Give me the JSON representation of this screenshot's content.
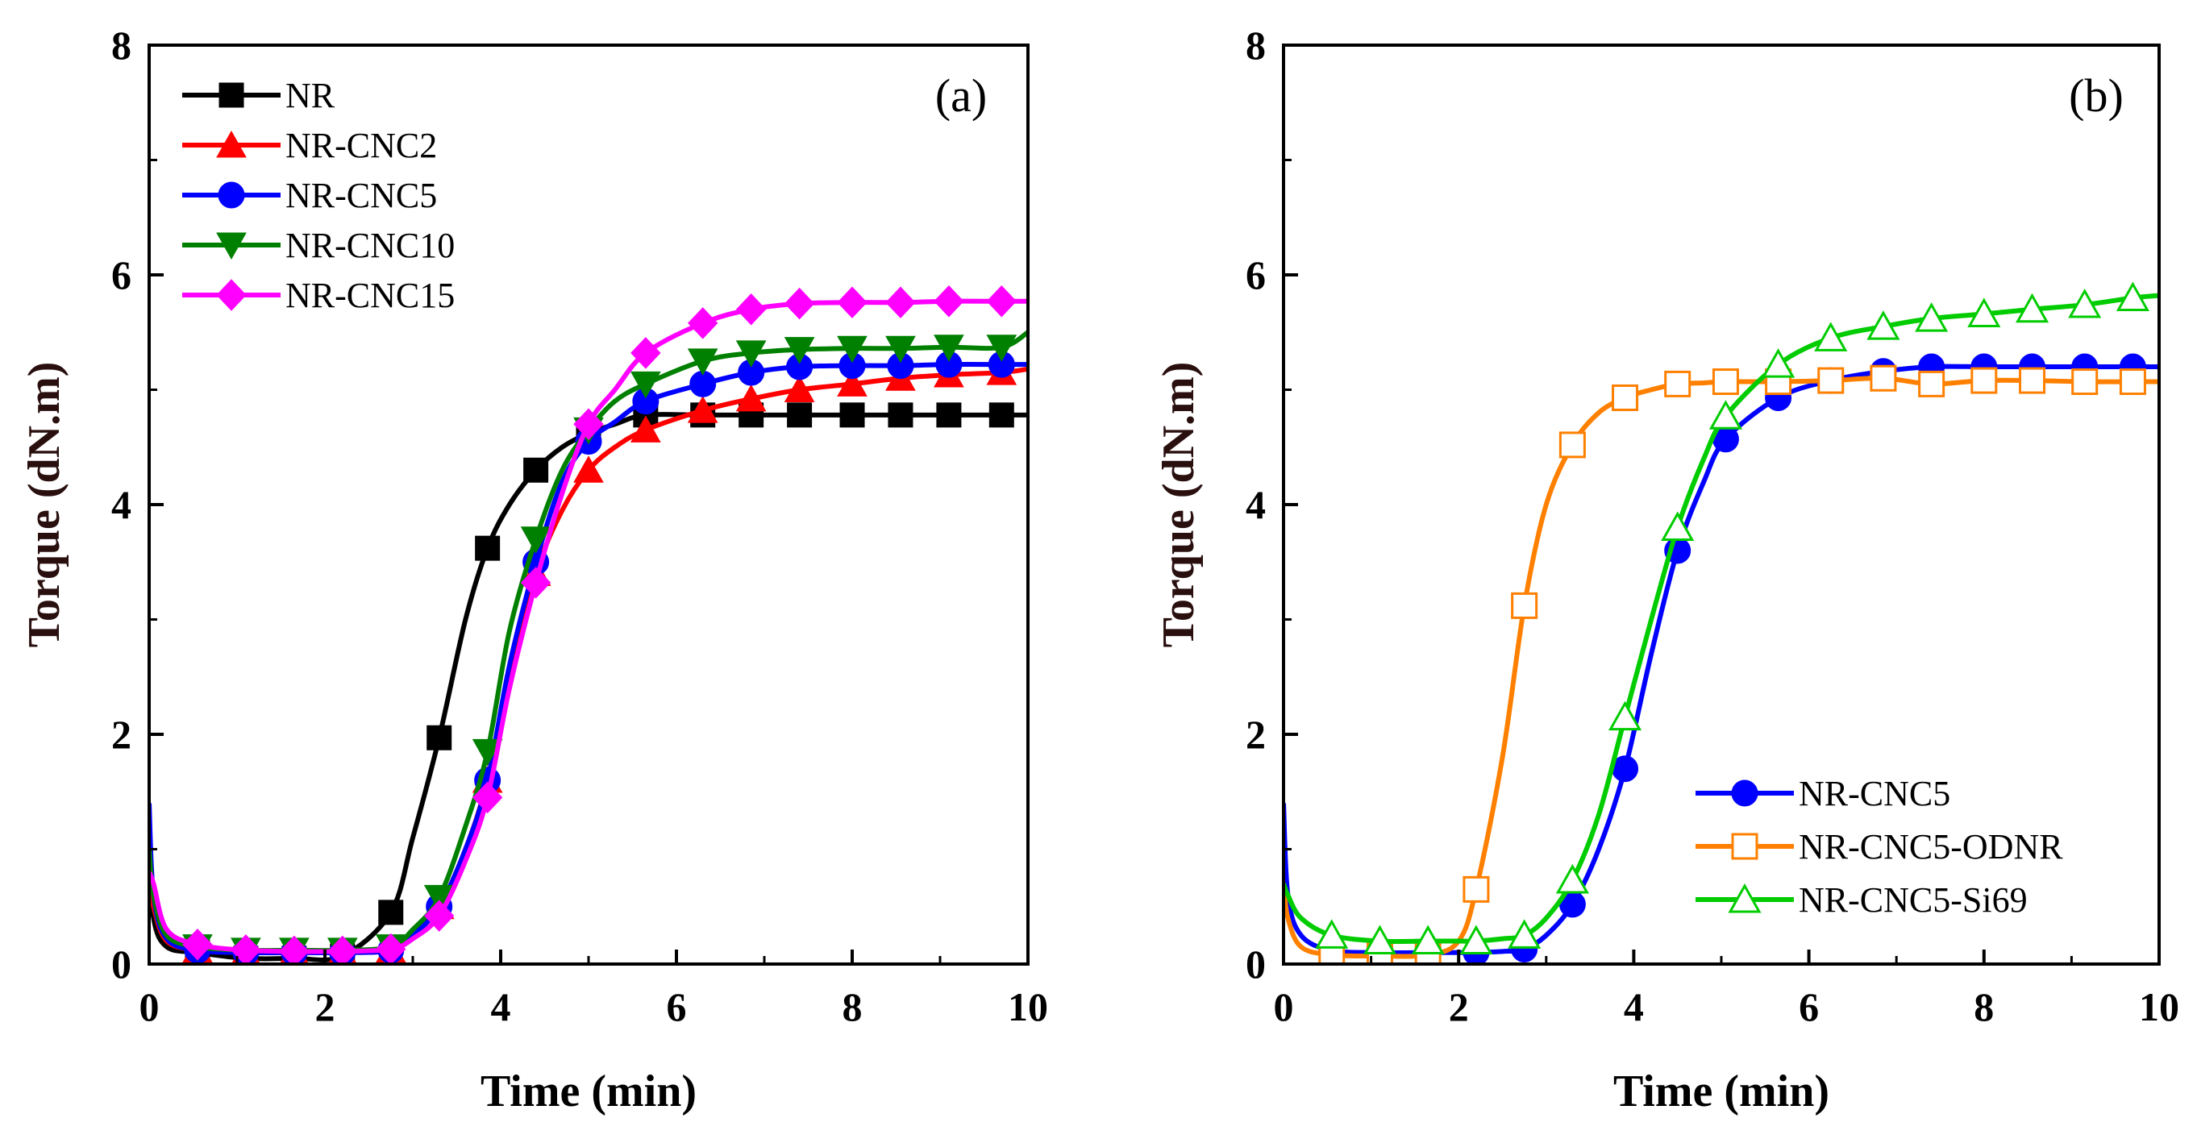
{
  "chart_data": [
    {
      "type": "line",
      "panel_label": "(a)",
      "xlabel": "Time (min)",
      "ylabel": "Torque (dN.m)",
      "xlim": [
        0,
        10
      ],
      "ylim": [
        0,
        8
      ],
      "xticks": [
        0,
        2,
        4,
        6,
        8,
        10
      ],
      "yticks": [
        0,
        2,
        4,
        6,
        8
      ],
      "legend_position": "top-left",
      "x": [
        0,
        0.05,
        0.2,
        0.55,
        1.1,
        1.65,
        2.2,
        2.75,
        3.0,
        3.3,
        3.6,
        3.85,
        4.1,
        4.4,
        4.7,
        5.0,
        5.3,
        5.65,
        6.3,
        6.85,
        7.4,
        8.0,
        8.55,
        9.1,
        9.7,
        10
      ],
      "marker_x": [
        0.55,
        1.1,
        1.65,
        2.2,
        2.75,
        3.3,
        3.85,
        4.4,
        5.0,
        5.65,
        6.3,
        6.85,
        7.4,
        8.0,
        8.55,
        9.1,
        9.7
      ],
      "series": [
        {
          "name": "NR",
          "color": "#000000",
          "marker": "square",
          "y": [
            1.0,
            0.4,
            0.15,
            0.1,
            0.05,
            0.05,
            0.07,
            0.45,
            1.1,
            1.97,
            3.0,
            3.62,
            4.0,
            4.3,
            4.5,
            4.62,
            4.7,
            4.78,
            4.78,
            4.78,
            4.78,
            4.78,
            4.78,
            4.78,
            4.78,
            4.78
          ]
        },
        {
          "name": "NR-CNC2",
          "color": "#ff0000",
          "marker": "triangle-up",
          "y": [
            0.8,
            0.5,
            0.2,
            0.12,
            0.1,
            0.1,
            0.1,
            0.12,
            0.25,
            0.5,
            1.0,
            1.6,
            2.5,
            3.4,
            3.95,
            4.3,
            4.5,
            4.65,
            4.82,
            4.92,
            5.0,
            5.05,
            5.1,
            5.13,
            5.15,
            5.18
          ]
        },
        {
          "name": "NR-CNC5",
          "color": "#0000ff",
          "marker": "circle",
          "y": [
            1.4,
            0.6,
            0.22,
            0.12,
            0.1,
            0.1,
            0.1,
            0.12,
            0.25,
            0.5,
            1.0,
            1.6,
            2.6,
            3.5,
            4.2,
            4.55,
            4.72,
            4.9,
            5.05,
            5.15,
            5.2,
            5.21,
            5.21,
            5.22,
            5.22,
            5.22
          ]
        },
        {
          "name": "NR-CNC10",
          "color": "#008000",
          "marker": "triangle-down",
          "y": [
            1.0,
            0.6,
            0.25,
            0.15,
            0.12,
            0.12,
            0.12,
            0.15,
            0.3,
            0.58,
            1.2,
            1.85,
            2.9,
            3.7,
            4.3,
            4.65,
            4.9,
            5.05,
            5.25,
            5.32,
            5.35,
            5.36,
            5.36,
            5.37,
            5.37,
            5.5
          ]
        },
        {
          "name": "NR-CNC15",
          "color": "#ff00ff",
          "marker": "diamond",
          "y": [
            0.8,
            0.7,
            0.3,
            0.17,
            0.12,
            0.11,
            0.11,
            0.13,
            0.22,
            0.42,
            0.9,
            1.45,
            2.4,
            3.32,
            4.1,
            4.7,
            5.0,
            5.32,
            5.58,
            5.7,
            5.75,
            5.76,
            5.76,
            5.77,
            5.77,
            5.77
          ]
        }
      ]
    },
    {
      "type": "line",
      "panel_label": "(b)",
      "xlabel": "Time (min)",
      "ylabel": "Torque (dN.m)",
      "xlim": [
        0,
        10
      ],
      "ylim": [
        0,
        8
      ],
      "xticks": [
        0,
        2,
        4,
        6,
        8,
        10
      ],
      "yticks": [
        0,
        2,
        4,
        6,
        8
      ],
      "legend_position": "bottom-right",
      "x": [
        0,
        0.05,
        0.2,
        0.55,
        1.1,
        1.65,
        2.0,
        2.2,
        2.5,
        2.75,
        3.0,
        3.3,
        3.6,
        3.9,
        4.2,
        4.5,
        4.8,
        5.05,
        5.65,
        6.25,
        6.85,
        7.4,
        8.0,
        8.55,
        9.15,
        9.7,
        10
      ],
      "marker_x": [
        0.55,
        1.1,
        1.65,
        2.2,
        2.75,
        3.3,
        3.9,
        4.5,
        5.05,
        5.65,
        6.25,
        6.85,
        7.4,
        8.0,
        8.55,
        9.15,
        9.7
      ],
      "series": [
        {
          "name": "NR-CNC5",
          "color": "#0000ff",
          "marker": "circle",
          "filled": true,
          "y": [
            1.4,
            0.6,
            0.25,
            0.12,
            0.1,
            0.1,
            0.1,
            0.1,
            0.11,
            0.13,
            0.25,
            0.52,
            1.0,
            1.7,
            2.7,
            3.6,
            4.2,
            4.57,
            4.93,
            5.08,
            5.16,
            5.2,
            5.2,
            5.2,
            5.2,
            5.2,
            5.2
          ]
        },
        {
          "name": "NR-CNC5-ODNR",
          "color": "#ff8000",
          "marker": "square",
          "filled": false,
          "y": [
            0.7,
            0.4,
            0.15,
            0.08,
            0.07,
            0.08,
            0.2,
            0.65,
            1.8,
            3.12,
            4.0,
            4.52,
            4.8,
            4.93,
            5.0,
            5.05,
            5.06,
            5.07,
            5.07,
            5.08,
            5.1,
            5.05,
            5.08,
            5.08,
            5.07,
            5.07,
            5.07
          ]
        },
        {
          "name": "NR-CNC5-Si69",
          "color": "#00cc00",
          "marker": "triangle-up",
          "filled": false,
          "y": [
            0.7,
            0.6,
            0.4,
            0.25,
            0.2,
            0.2,
            0.2,
            0.2,
            0.22,
            0.25,
            0.4,
            0.73,
            1.3,
            2.15,
            3.0,
            3.8,
            4.4,
            4.77,
            5.22,
            5.45,
            5.55,
            5.62,
            5.66,
            5.7,
            5.74,
            5.8,
            5.82
          ]
        }
      ]
    }
  ]
}
